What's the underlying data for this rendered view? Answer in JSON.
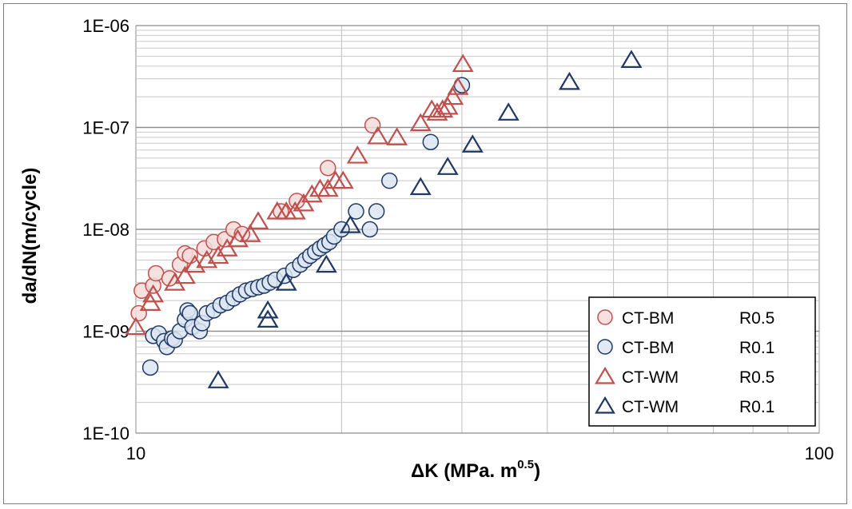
{
  "chart_data": {
    "type": "scatter",
    "title": "",
    "xlabel": "ΔK (MPa. m",
    "xlabel_sup": "0.5",
    "xlabel_close": ")",
    "ylabel": "da/dN(m/cycle)",
    "xscale": "log",
    "yscale": "log",
    "xlim": [
      10,
      100
    ],
    "ylim": [
      1e-10,
      1e-06
    ],
    "x_tick_labels": [
      "10",
      "100"
    ],
    "y_tick_labels": [
      "1E-10",
      "1E-09",
      "1E-08",
      "1E-07",
      "1E-06"
    ],
    "grid": "major and minor, both axes",
    "legend_position": "bottom-right",
    "series": [
      {
        "name": "CT-BM",
        "r_label": "R0.5",
        "marker": "circle",
        "color": "#c0504d",
        "fill": "#f2dcdb",
        "points": [
          [
            10.1,
            1.5e-09
          ],
          [
            10.2,
            2.5e-09
          ],
          [
            10.6,
            2.8e-09
          ],
          [
            10.7,
            3.7e-09
          ],
          [
            11.2,
            3.3e-09
          ],
          [
            11.6,
            4.5e-09
          ],
          [
            11.8,
            5.8e-09
          ],
          [
            12.0,
            5.5e-09
          ],
          [
            12.6,
            6.5e-09
          ],
          [
            13.0,
            7.5e-09
          ],
          [
            13.5,
            8e-09
          ],
          [
            13.9,
            1e-08
          ],
          [
            14.3,
            9e-09
          ],
          [
            16.3,
            1.5e-08
          ],
          [
            17.2,
            1.9e-08
          ],
          [
            19.1,
            4e-08
          ],
          [
            22.2,
            1.05e-07
          ]
        ]
      },
      {
        "name": "CT-BM",
        "r_label": "R0.1",
        "marker": "circle",
        "color": "#1f3864",
        "fill": "#dce6f2",
        "points": [
          [
            10.5,
            4.4e-10
          ],
          [
            10.6,
            9e-10
          ],
          [
            10.8,
            9.5e-10
          ],
          [
            11.0,
            8e-10
          ],
          [
            11.1,
            7e-10
          ],
          [
            11.3,
            8.5e-10
          ],
          [
            11.4,
            8.2e-10
          ],
          [
            11.6,
            1e-09
          ],
          [
            11.8,
            1.3e-09
          ],
          [
            11.9,
            1.6e-09
          ],
          [
            12.0,
            1.5e-09
          ],
          [
            12.1,
            1.1e-09
          ],
          [
            12.4,
            1e-09
          ],
          [
            12.5,
            1.2e-09
          ],
          [
            12.7,
            1.5e-09
          ],
          [
            13.0,
            1.6e-09
          ],
          [
            13.3,
            1.8e-09
          ],
          [
            13.6,
            1.9e-09
          ],
          [
            13.9,
            2.1e-09
          ],
          [
            14.2,
            2.3e-09
          ],
          [
            14.5,
            2.5e-09
          ],
          [
            14.8,
            2.6e-09
          ],
          [
            15.1,
            2.7e-09
          ],
          [
            15.4,
            2.8e-09
          ],
          [
            15.7,
            3e-09
          ],
          [
            16.0,
            3.2e-09
          ],
          [
            16.5,
            3.5e-09
          ],
          [
            17.0,
            4e-09
          ],
          [
            17.4,
            4.5e-09
          ],
          [
            17.7,
            5e-09
          ],
          [
            18.0,
            5.5e-09
          ],
          [
            18.3,
            6e-09
          ],
          [
            18.6,
            6.5e-09
          ],
          [
            18.9,
            7e-09
          ],
          [
            19.2,
            7.5e-09
          ],
          [
            19.5,
            8.5e-09
          ],
          [
            20.0,
            1e-08
          ],
          [
            21.0,
            1.5e-08
          ],
          [
            22.0,
            1e-08
          ],
          [
            22.5,
            1.5e-08
          ],
          [
            23.5,
            3e-08
          ],
          [
            27.0,
            7.2e-08
          ],
          [
            30.0,
            2.6e-07
          ]
        ]
      },
      {
        "name": "CT-WM",
        "r_label": "R0.5",
        "marker": "triangle",
        "color": "#c0504d",
        "fill": "none",
        "points": [
          [
            10.0,
            1.1e-09
          ],
          [
            10.5,
            1.9e-09
          ],
          [
            10.6,
            2.3e-09
          ],
          [
            11.4,
            3e-09
          ],
          [
            11.8,
            3.5e-09
          ],
          [
            12.2,
            4.5e-09
          ],
          [
            12.7,
            5e-09
          ],
          [
            13.2,
            5.5e-09
          ],
          [
            13.6,
            6.5e-09
          ],
          [
            14.1,
            8e-09
          ],
          [
            14.7,
            9e-09
          ],
          [
            15.1,
            1.2e-08
          ],
          [
            16.1,
            1.5e-08
          ],
          [
            16.6,
            1.5e-08
          ],
          [
            17.1,
            1.5e-08
          ],
          [
            17.6,
            1.8e-08
          ],
          [
            18.1,
            2.2e-08
          ],
          [
            18.6,
            2.5e-08
          ],
          [
            19.1,
            2.5e-08
          ],
          [
            19.6,
            3e-08
          ],
          [
            20.1,
            3e-08
          ],
          [
            21.1,
            5.3e-08
          ],
          [
            22.6,
            8.2e-08
          ],
          [
            24.1,
            8e-08
          ],
          [
            26.1,
            1.1e-07
          ],
          [
            27.1,
            1.5e-07
          ],
          [
            27.6,
            1.4e-07
          ],
          [
            28.1,
            1.5e-07
          ],
          [
            28.6,
            1.6e-07
          ],
          [
            29.1,
            2e-07
          ],
          [
            29.6,
            2.5e-07
          ],
          [
            30.1,
            4.2e-07
          ]
        ]
      },
      {
        "name": "CT-WM",
        "r_label": "R0.1",
        "marker": "triangle",
        "color": "#1f3864",
        "fill": "none",
        "points": [
          [
            13.2,
            3.3e-10
          ],
          [
            15.6,
            1.3e-09
          ],
          [
            15.6,
            1.6e-09
          ],
          [
            16.6,
            3e-09
          ],
          [
            19.0,
            4.5e-09
          ],
          [
            20.6,
            1.1e-08
          ],
          [
            26.1,
            2.6e-08
          ],
          [
            28.6,
            4.1e-08
          ],
          [
            31.1,
            6.8e-08
          ],
          [
            35.1,
            1.4e-07
          ],
          [
            43.1,
            2.8e-07
          ],
          [
            53.1,
            4.6e-07
          ]
        ]
      }
    ]
  }
}
